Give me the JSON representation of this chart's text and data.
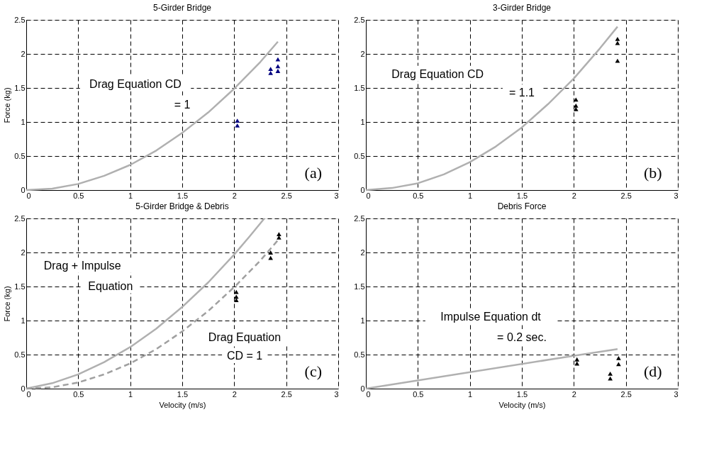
{
  "chart_data": [
    {
      "type": "scatter",
      "title": "5-Girder Bridge",
      "ylabel": "Force (kg)",
      "xlim": [
        0,
        3
      ],
      "ylim": [
        0,
        2.5
      ],
      "xticks": [
        0,
        0.5,
        1,
        1.5,
        2,
        2.5,
        3
      ],
      "yticks": [
        0,
        0.5,
        1,
        1.5,
        2,
        2.5
      ],
      "grid": true,
      "series": [
        {
          "type": "line",
          "color": "#b0b0b0",
          "line_style": "solid",
          "x": [
            0,
            0.25,
            0.5,
            0.75,
            1,
            1.25,
            1.5,
            1.75,
            2,
            2.25,
            2.42
          ],
          "values": [
            0,
            0.02,
            0.09,
            0.21,
            0.37,
            0.58,
            0.84,
            1.14,
            1.49,
            1.88,
            2.18
          ]
        },
        {
          "color": "#000080",
          "marker": "triangle",
          "x": [
            2.03,
            2.03,
            2.35,
            2.35,
            2.42,
            2.42,
            2.42
          ],
          "values": [
            1.02,
            0.95,
            1.78,
            1.72,
            1.92,
            1.82,
            1.75
          ]
        }
      ],
      "annotations": [
        "Drag Equation CD",
        "= 1",
        "(a)"
      ]
    },
    {
      "type": "scatter",
      "title": "3-Girder Bridge",
      "xlim": [
        0,
        3
      ],
      "ylim": [
        0,
        2.5
      ],
      "xticks": [
        0,
        0.5,
        1,
        1.5,
        2,
        2.5,
        3
      ],
      "yticks": [
        0,
        0.5,
        1,
        1.5,
        2,
        2.5
      ],
      "grid": true,
      "series": [
        {
          "type": "line",
          "color": "#b0b0b0",
          "line_style": "solid",
          "x": [
            0,
            0.25,
            0.5,
            0.75,
            1,
            1.25,
            1.5,
            1.75,
            2,
            2.25,
            2.42
          ],
          "values": [
            0,
            0.03,
            0.1,
            0.23,
            0.41,
            0.64,
            0.92,
            1.26,
            1.64,
            2.08,
            2.4
          ]
        },
        {
          "color": "#000000",
          "marker": "triangle",
          "x": [
            2.02,
            2.02,
            2.02,
            2.42,
            2.42,
            2.42
          ],
          "values": [
            1.33,
            1.24,
            1.19,
            2.22,
            2.16,
            1.9
          ]
        }
      ],
      "annotations": [
        "Drag Equation CD",
        "= 1.1",
        "(b)"
      ]
    },
    {
      "type": "scatter",
      "title": "5-Girder Bridge & Debris",
      "xlabel": "Velocity (m/s)",
      "ylabel": "Force (kg)",
      "xlim": [
        0,
        3
      ],
      "ylim": [
        0,
        2.5
      ],
      "xticks": [
        0,
        0.5,
        1,
        1.5,
        2,
        2.5,
        3
      ],
      "yticks": [
        0,
        0.5,
        1,
        1.5,
        2,
        2.5
      ],
      "grid": true,
      "series": [
        {
          "type": "line",
          "color": "#b0b0b0",
          "line_style": "solid",
          "x": [
            0,
            0.25,
            0.5,
            0.75,
            1,
            1.25,
            1.5,
            1.75,
            2,
            2.15,
            2.29
          ],
          "values": [
            0,
            0.08,
            0.21,
            0.39,
            0.61,
            0.88,
            1.2,
            1.56,
            1.97,
            2.24,
            2.5
          ]
        },
        {
          "type": "line",
          "color": "#a0a0a0",
          "line_style": "dashed",
          "x": [
            0,
            0.25,
            0.5,
            0.75,
            1,
            1.25,
            1.5,
            1.75,
            2.02,
            2.25,
            2.42
          ],
          "values": [
            0,
            0.02,
            0.09,
            0.21,
            0.37,
            0.58,
            0.84,
            1.14,
            1.52,
            1.88,
            2.18
          ]
        },
        {
          "color": "#000000",
          "marker": "triangle",
          "x": [
            2.02,
            2.02,
            2.02,
            2.35,
            2.35,
            2.43,
            2.43
          ],
          "values": [
            1.42,
            1.35,
            1.3,
            2.0,
            1.92,
            2.27,
            2.22
          ]
        }
      ],
      "annotations": [
        "Drag + Impulse",
        "Equation",
        "Drag Equation",
        "CD = 1",
        "(c)"
      ]
    },
    {
      "type": "scatter",
      "title": "Debris Force",
      "xlabel": "Velocity (m/s)",
      "xlim": [
        0,
        3
      ],
      "ylim": [
        0,
        2.5
      ],
      "xticks": [
        0,
        0.5,
        1,
        1.5,
        2,
        2.5,
        3
      ],
      "yticks": [
        0,
        0.5,
        1,
        1.5,
        2,
        2.5
      ],
      "grid": true,
      "series": [
        {
          "type": "line",
          "color": "#b0b0b0",
          "line_style": "solid",
          "x": [
            0,
            2.03,
            2.42
          ],
          "values": [
            0,
            0.49,
            0.58
          ]
        },
        {
          "color": "#000000",
          "marker": "triangle",
          "x": [
            2.03,
            2.03,
            2.35,
            2.35,
            2.43,
            2.43
          ],
          "values": [
            0.43,
            0.37,
            0.22,
            0.15,
            0.45,
            0.36
          ]
        }
      ],
      "annotations": [
        "Impulse Equation dt",
        "= 0.2 sec.",
        "(d)"
      ]
    }
  ]
}
